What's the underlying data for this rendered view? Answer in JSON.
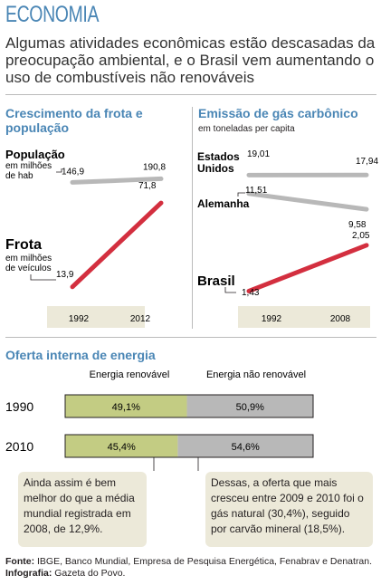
{
  "section": "ECONOMIA",
  "headline": "Algumas atividades econômicas estão descasadas da preocupação ambiental, e o Brasil vem aumentando o uso de combustíveis não renováveis",
  "left": {
    "title": "Crescimento da frota e população",
    "pop_label": "População",
    "pop_sub": "em milhões de hab",
    "fleet_label": "Frota",
    "fleet_sub": "em milhões de veículos",
    "years": [
      "1992",
      "2012"
    ]
  },
  "right": {
    "title": "Emissão de gás carbônico",
    "subtitle": "em toneladas per capita",
    "us_label_1": "Estados",
    "us_label_2": "Unidos",
    "de_label": "Alemanha",
    "br_label": "Brasil",
    "years": [
      "1992",
      "2008"
    ]
  },
  "energy": {
    "title": "Oferta interna de energia",
    "head_renew": "Energia renovável",
    "head_nonrenew": "Energia não renovável",
    "rows": [
      {
        "year": "1990",
        "renew_label": "49,1%",
        "nonrenew_label": "50,9%"
      },
      {
        "year": "2010",
        "renew_label": "45,4%",
        "nonrenew_label": "54,6%"
      }
    ],
    "note_left": "Ainda assim é bem melhor do que a média mundial registrada em 2008, de 12,9%.",
    "note_right": "Dessas, a oferta que mais cresceu entre 2009 e 2010 foi o gás natural (30,4%), seguido por carvão mineral (18,5%)."
  },
  "source_bold_1": "Fonte:",
  "source_text": " IBGE, Banco Mundial, Empresa de Pesquisa Energética, Fenabrav e Denatran. ",
  "source_bold_2": "Infografia:",
  "source_text_2": " Gazeta do Povo.",
  "colors": {
    "accent": "#4a86b5",
    "red": "#d32f3f",
    "gray": "#b8b8b8",
    "green": "#c3cc83",
    "beige": "#ece9d9"
  },
  "chart_data": [
    {
      "type": "line",
      "title": "Crescimento da frota e população",
      "x": [
        "1992",
        "2012"
      ],
      "series": [
        {
          "name": "População",
          "values": [
            146.9,
            190.8
          ],
          "value_labels": [
            "146,9",
            "190,8"
          ]
        },
        {
          "name": "Frota",
          "values": [
            13.9,
            71.8
          ],
          "value_labels": [
            "13,9",
            "71,8"
          ]
        }
      ]
    },
    {
      "type": "line",
      "title": "Emissão de gás carbônico",
      "subtitle": "em toneladas per capita",
      "x": [
        "1992",
        "2008"
      ],
      "series": [
        {
          "name": "Estados Unidos",
          "values": [
            19.01,
            17.94
          ],
          "value_labels": [
            "19,01",
            "17,94"
          ]
        },
        {
          "name": "Alemanha",
          "values": [
            11.51,
            9.58
          ],
          "value_labels": [
            "11,51",
            "9,58"
          ]
        },
        {
          "name": "Brasil",
          "values": [
            1.43,
            2.05
          ],
          "value_labels": [
            "1,43",
            "2,05"
          ]
        }
      ]
    },
    {
      "type": "bar",
      "title": "Oferta interna de energia",
      "categories": [
        "1990",
        "2010"
      ],
      "series": [
        {
          "name": "Energia renovável",
          "values": [
            49.1,
            45.4
          ]
        },
        {
          "name": "Energia não renovável",
          "values": [
            50.9,
            54.6
          ]
        }
      ],
      "stacked": true
    }
  ]
}
